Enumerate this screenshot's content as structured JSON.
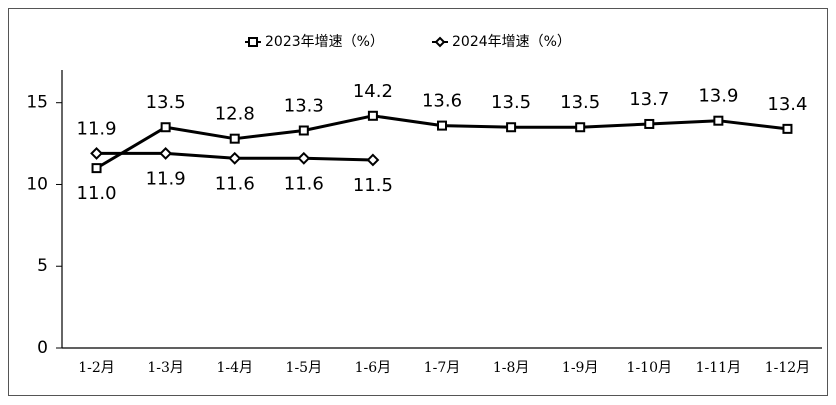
{
  "chart_data": {
    "type": "line",
    "categories": [
      "1-2月",
      "1-3月",
      "1-4月",
      "1-5月",
      "1-6月",
      "1-7月",
      "1-8月",
      "1-9月",
      "1-10月",
      "1-11月",
      "1-12月"
    ],
    "series": [
      {
        "name": "2023年增速（%）",
        "color": "#000000",
        "marker": "square",
        "values": [
          11.0,
          13.5,
          12.8,
          13.3,
          14.2,
          13.6,
          13.5,
          13.5,
          13.7,
          13.9,
          13.4
        ],
        "value_labels": [
          "11.0",
          "13.5",
          "12.8",
          "13.3",
          "14.2",
          "13.6",
          "13.5",
          "13.5",
          "13.7",
          "13.9",
          "13.4"
        ]
      },
      {
        "name": "2024年增速（%）",
        "color": "#000000",
        "marker": "diamond",
        "values": [
          11.9,
          11.9,
          11.6,
          11.6,
          11.5,
          null,
          null,
          null,
          null,
          null,
          null
        ],
        "value_labels": [
          "11.9",
          "11.9",
          "11.6",
          "11.6",
          "11.5",
          null,
          null,
          null,
          null,
          null,
          null
        ]
      }
    ],
    "ylim": [
      0,
      17
    ],
    "yticks": [
      0,
      5,
      10,
      15
    ],
    "grid": false,
    "legend": "top"
  }
}
